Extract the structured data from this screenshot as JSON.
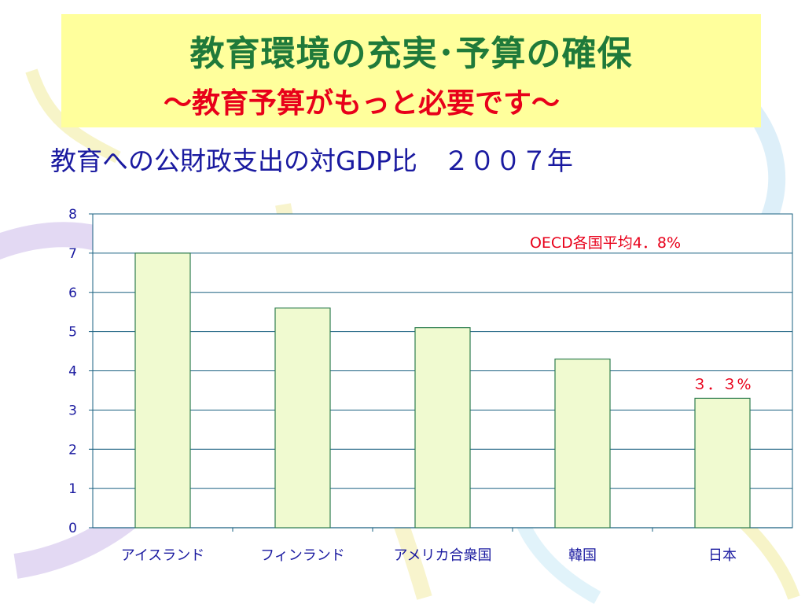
{
  "title": "教育環境の充実･予算の確保",
  "subtitle": "～教育予算がもっと必要です～",
  "chart_heading": "教育への公財政支出の対GDP比　２００７年",
  "colors": {
    "title": "#1f7a3a",
    "subtitle": "#e8001a",
    "heading": "#1a1aa0",
    "bar_fill": "#f0fad0",
    "bar_stroke": "#2e7d4f",
    "gridline": "#1a6080",
    "annotation": "#e8001a"
  },
  "chart_data": {
    "type": "bar",
    "categories": [
      "アイスランド",
      "フィンランド",
      "アメリカ合衆国",
      "韓国",
      "日本"
    ],
    "values": [
      7.0,
      5.6,
      5.1,
      4.3,
      3.3
    ],
    "ylim": [
      0,
      8
    ],
    "yticks": [
      "0",
      "1",
      "2",
      "3",
      "4",
      "5",
      "6",
      "7",
      "8"
    ],
    "grid": true,
    "annotations": [
      {
        "text": "OECD各国平均4．8%"
      },
      {
        "text": "３．３%"
      }
    ]
  }
}
